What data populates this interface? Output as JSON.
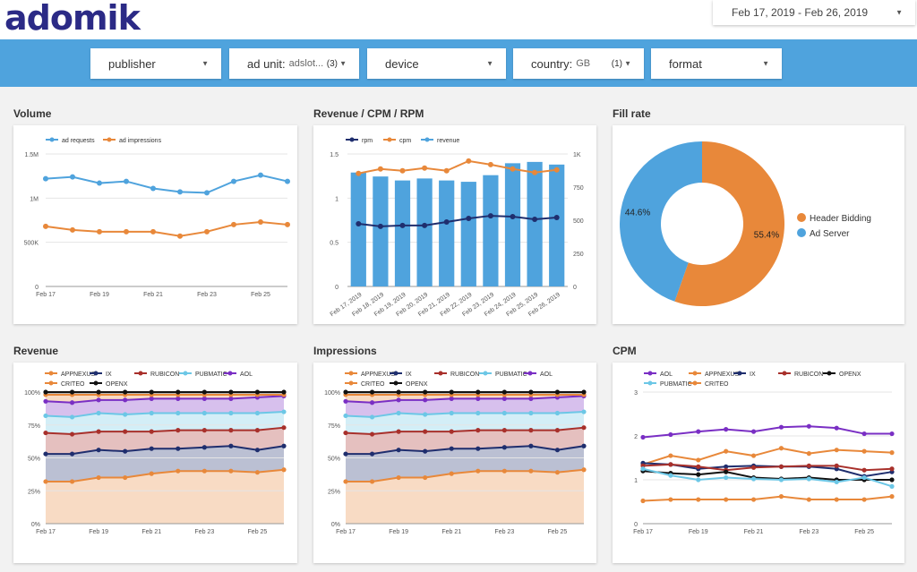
{
  "brand": {
    "logo": "adomik"
  },
  "date_range": {
    "label": "Feb 17, 2019 - Feb 26, 2019"
  },
  "filters": [
    {
      "label": "publisher",
      "value": "",
      "count": ""
    },
    {
      "label": "ad unit:",
      "value": "adslot...",
      "count": "(3)"
    },
    {
      "label": "device",
      "value": "",
      "count": ""
    },
    {
      "label": "country:",
      "value": "GB",
      "count": "(1)"
    },
    {
      "label": "format",
      "value": "",
      "count": ""
    }
  ],
  "panels": {
    "volume": "Volume",
    "revenue_cpm_rpm": "Revenue / CPM / RPM",
    "fill_rate": "Fill rate",
    "revenue": "Revenue",
    "impressions": "Impressions",
    "cpm": "CPM"
  },
  "colors": {
    "blue": "#4fa3dd",
    "orange": "#e8883a",
    "navy": "#1f2e6e",
    "red": "#a8302b",
    "lightblue": "#6cc7e6",
    "purple": "#7a2fc4",
    "black": "#111111"
  },
  "chart_data": [
    {
      "type": "line",
      "title": "Volume",
      "x": [
        "Feb 17",
        "Feb 18",
        "Feb 19",
        "Feb 20",
        "Feb 21",
        "Feb 22",
        "Feb 23",
        "Feb 24",
        "Feb 25",
        "Feb 26"
      ],
      "x_tick_labels": [
        "Feb 17",
        "Feb 19",
        "Feb 21",
        "Feb 23",
        "Feb 25"
      ],
      "y_tick_labels": [
        "1.5M",
        "1M",
        "500K",
        "0"
      ],
      "ylim": [
        0,
        1500000
      ],
      "legend": "top-left",
      "series": [
        {
          "name": "ad requests",
          "values": [
            1220000,
            1240000,
            1170000,
            1190000,
            1110000,
            1070000,
            1060000,
            1190000,
            1260000,
            1190000
          ]
        },
        {
          "name": "ad impressions",
          "values": [
            680000,
            640000,
            620000,
            620000,
            620000,
            570000,
            620000,
            700000,
            730000,
            700000
          ]
        }
      ]
    },
    {
      "type": "bar",
      "title": "Revenue / CPM / RPM",
      "categories": [
        "Feb 17, 2019",
        "Feb 18, 2019",
        "Feb 19, 2019",
        "Feb 20, 2019",
        "Feb 21, 2019",
        "Feb 22, 2019",
        "Feb 23, 2019",
        "Feb 24, 2019",
        "Feb 25, 2019",
        "Feb 26, 2019"
      ],
      "y_tick_labels_left": [
        "1.5",
        "1",
        "0.5",
        "0"
      ],
      "y_tick_labels_right": [
        "1K",
        "750",
        "500",
        "250",
        "0"
      ],
      "ylim_left": [
        0,
        1.5
      ],
      "ylim_right": [
        0,
        1000
      ],
      "legend": "top-left",
      "series": [
        {
          "name": "rpm",
          "axis": "left",
          "values": [
            0.71,
            0.68,
            0.69,
            0.69,
            0.73,
            0.77,
            0.8,
            0.79,
            0.76,
            0.78
          ]
        },
        {
          "name": "cpm",
          "axis": "left",
          "values": [
            1.28,
            1.33,
            1.31,
            1.34,
            1.31,
            1.42,
            1.38,
            1.33,
            1.29,
            1.32
          ]
        },
        {
          "name": "revenue",
          "axis": "right",
          "values": [
            860,
            830,
            800,
            815,
            800,
            790,
            840,
            930,
            940,
            920
          ]
        }
      ]
    },
    {
      "type": "pie",
      "title": "Fill rate",
      "legend": "right",
      "slices": [
        {
          "name": "Header Bidding",
          "value": 55.4,
          "label": "55.4%"
        },
        {
          "name": "Ad Server",
          "value": 44.6,
          "label": "44.6%"
        }
      ]
    },
    {
      "type": "area",
      "title": "Revenue",
      "x": [
        "Feb 17",
        "Feb 18",
        "Feb 19",
        "Feb 20",
        "Feb 21",
        "Feb 22",
        "Feb 23",
        "Feb 24",
        "Feb 25",
        "Feb 26"
      ],
      "x_tick_labels": [
        "Feb 17",
        "Feb 19",
        "Feb 21",
        "Feb 23",
        "Feb 25"
      ],
      "y_tick_labels": [
        "100%",
        "75%",
        "50%",
        "25%",
        "0%"
      ],
      "ylim": [
        0,
        100
      ],
      "legend": "top",
      "series": [
        {
          "name": "APPNEXUS",
          "values": [
            32,
            32,
            35,
            35,
            38,
            40,
            40,
            40,
            39,
            41
          ]
        },
        {
          "name": "IX",
          "values": [
            53,
            53,
            56,
            55,
            57,
            57,
            58,
            59,
            56,
            59
          ]
        },
        {
          "name": "RUBICON",
          "values": [
            69,
            68,
            70,
            70,
            70,
            71,
            71,
            71,
            71,
            73
          ]
        },
        {
          "name": "PUBMATIC",
          "values": [
            82,
            81,
            84,
            83,
            84,
            84,
            84,
            84,
            84,
            85
          ]
        },
        {
          "name": "AOL",
          "values": [
            93,
            92,
            94,
            94,
            95,
            95,
            95,
            95,
            96,
            97
          ]
        },
        {
          "name": "CRITEO",
          "values": [
            98,
            98,
            98,
            98,
            98,
            98,
            98,
            98,
            98,
            98
          ]
        },
        {
          "name": "OPENX",
          "values": [
            100,
            100,
            100,
            100,
            100,
            100,
            100,
            100,
            100,
            100
          ]
        }
      ]
    },
    {
      "type": "area",
      "title": "Impressions",
      "x": [
        "Feb 17",
        "Feb 18",
        "Feb 19",
        "Feb 20",
        "Feb 21",
        "Feb 22",
        "Feb 23",
        "Feb 24",
        "Feb 25",
        "Feb 26"
      ],
      "x_tick_labels": [
        "Feb 17",
        "Feb 19",
        "Feb 21",
        "Feb 23",
        "Feb 25"
      ],
      "y_tick_labels": [
        "100%",
        "75%",
        "50%",
        "25%",
        "0%"
      ],
      "ylim": [
        0,
        100
      ],
      "legend": "top",
      "series": [
        {
          "name": "APPNEXUS",
          "values": [
            32,
            32,
            35,
            35,
            38,
            40,
            40,
            40,
            39,
            41
          ]
        },
        {
          "name": "IX",
          "values": [
            53,
            53,
            56,
            55,
            57,
            57,
            58,
            59,
            56,
            59
          ]
        },
        {
          "name": "RUBICON",
          "values": [
            69,
            68,
            70,
            70,
            70,
            71,
            71,
            71,
            71,
            73
          ]
        },
        {
          "name": "PUBMATIC",
          "values": [
            82,
            81,
            84,
            83,
            84,
            84,
            84,
            84,
            84,
            85
          ]
        },
        {
          "name": "AOL",
          "values": [
            93,
            92,
            94,
            94,
            95,
            95,
            95,
            95,
            96,
            97
          ]
        },
        {
          "name": "CRITEO",
          "values": [
            98,
            98,
            98,
            98,
            98,
            98,
            98,
            98,
            98,
            98
          ]
        },
        {
          "name": "OPENX",
          "values": [
            100,
            100,
            100,
            100,
            100,
            100,
            100,
            100,
            100,
            100
          ]
        }
      ]
    },
    {
      "type": "line",
      "title": "CPM",
      "x": [
        "Feb 17",
        "Feb 18",
        "Feb 19",
        "Feb 20",
        "Feb 21",
        "Feb 22",
        "Feb 23",
        "Feb 24",
        "Feb 25",
        "Feb 26"
      ],
      "x_tick_labels": [
        "Feb 17",
        "Feb 19",
        "Feb 21",
        "Feb 23",
        "Feb 25"
      ],
      "y_tick_labels": [
        "3",
        "2",
        "1",
        "0"
      ],
      "ylim": [
        0,
        3
      ],
      "legend": "top",
      "series": [
        {
          "name": "AOL",
          "values": [
            1.97,
            2.03,
            2.1,
            2.15,
            2.1,
            2.2,
            2.22,
            2.18,
            2.05,
            2.05
          ]
        },
        {
          "name": "APPNEXUS",
          "values": [
            1.35,
            1.55,
            1.45,
            1.65,
            1.55,
            1.72,
            1.6,
            1.68,
            1.65,
            1.62
          ]
        },
        {
          "name": "IX",
          "values": [
            1.38,
            1.35,
            1.25,
            1.3,
            1.32,
            1.3,
            1.3,
            1.25,
            1.08,
            1.18
          ]
        },
        {
          "name": "RUBICON",
          "values": [
            1.32,
            1.35,
            1.3,
            1.22,
            1.28,
            1.3,
            1.32,
            1.32,
            1.22,
            1.25
          ]
        },
        {
          "name": "OPENX",
          "values": [
            1.2,
            1.15,
            1.12,
            1.18,
            1.05,
            1.02,
            1.05,
            1.0,
            1.0,
            1.0
          ]
        },
        {
          "name": "PUBMATIC",
          "values": [
            1.25,
            1.1,
            1.0,
            1.05,
            1.02,
            1.0,
            1.02,
            0.95,
            1.05,
            0.85
          ]
        },
        {
          "name": "CRITEO",
          "values": [
            0.52,
            0.55,
            0.55,
            0.55,
            0.55,
            0.62,
            0.55,
            0.55,
            0.55,
            0.62
          ]
        }
      ]
    }
  ]
}
